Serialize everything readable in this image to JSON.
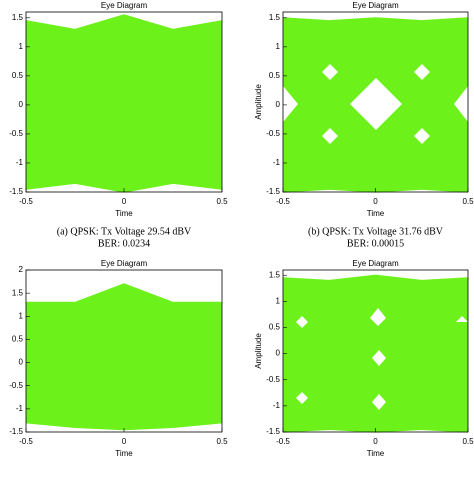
{
  "chart_data": [
    {
      "type": "eye",
      "title": "Eye Diagram",
      "xlabel": "Time",
      "caption": "(a) QPSK: Tx Voltage 29.54 dBV",
      "caption2": "BER: 0.0234",
      "x": [
        -0.5,
        -0.25,
        0,
        0.25,
        0.5
      ],
      "series": [
        {
          "color": "#6cf21a",
          "values": [
            1.45,
            1.3,
            1.55,
            1.3,
            1.45
          ]
        },
        {
          "color": "#6cf21a",
          "values": [
            -1.45,
            -1.35,
            -1.5,
            -1.35,
            -1.45
          ]
        }
      ],
      "xlim": [
        -0.5,
        0.5
      ],
      "xticks": [
        -0.5,
        0,
        0.5
      ],
      "ylim": [
        -1.5,
        1.6
      ],
      "yticks": [
        -1.5,
        -1,
        -0.5,
        0,
        0.5,
        1,
        1.5
      ]
    },
    {
      "type": "eye",
      "title": "Eye Diagram",
      "xlabel": "Time",
      "ylabel": "Amplitude",
      "caption": "(b) QPSK: Tx Voltage 31.76 dBV",
      "caption2": "BER: 0.00015",
      "x": [
        -0.5,
        -0.25,
        0,
        0.25,
        0.5
      ],
      "series": [
        {
          "color": "#6cf21a",
          "values": [
            1.5,
            1.45,
            1.5,
            1.45,
            1.5
          ]
        },
        {
          "color": "#6cf21a",
          "values": [
            -1.5,
            -1.45,
            -1.5,
            -1.45,
            -1.5
          ]
        }
      ],
      "xlim": [
        -0.5,
        0.5
      ],
      "xticks": [
        -0.5,
        0,
        0.5
      ],
      "ylim": [
        -1.5,
        1.6
      ],
      "yticks": [
        -1.5,
        -1,
        -0.5,
        0,
        0.5,
        1,
        1.5
      ]
    },
    {
      "type": "eye",
      "title": "Eye Diagram",
      "xlabel": "Time",
      "x": [
        -0.5,
        -0.25,
        0,
        0.25,
        0.5
      ],
      "series": [
        {
          "color": "#6cf21a",
          "values": [
            1.3,
            1.3,
            1.7,
            1.3,
            1.3
          ]
        },
        {
          "color": "#6cf21a",
          "values": [
            -1.3,
            -1.4,
            -1.45,
            -1.4,
            -1.3
          ]
        }
      ],
      "xlim": [
        -0.5,
        0.5
      ],
      "xticks": [
        -0.5,
        0,
        0.5
      ],
      "ylim": [
        -1.5,
        2
      ],
      "yticks": [
        -1.5,
        -1,
        -0.5,
        0,
        0.5,
        1,
        1.5,
        2
      ]
    },
    {
      "type": "eye",
      "title": "Eye Diagram",
      "xlabel": "Time",
      "ylabel": "Amplitude",
      "x": [
        -0.5,
        -0.25,
        0,
        0.25,
        0.5
      ],
      "series": [
        {
          "color": "#6cf21a",
          "values": [
            1.45,
            1.4,
            1.5,
            1.4,
            1.45
          ]
        },
        {
          "color": "#6cf21a",
          "values": [
            -1.5,
            -1.45,
            -1.5,
            -1.45,
            -1.5
          ]
        }
      ],
      "xlim": [
        -0.5,
        0.5
      ],
      "xticks": [
        -0.5,
        0,
        0.5
      ],
      "ylim": [
        -1.5,
        1.6
      ],
      "yticks": [
        -1.5,
        -1,
        -0.5,
        0,
        0.5,
        1,
        1.5
      ]
    }
  ]
}
